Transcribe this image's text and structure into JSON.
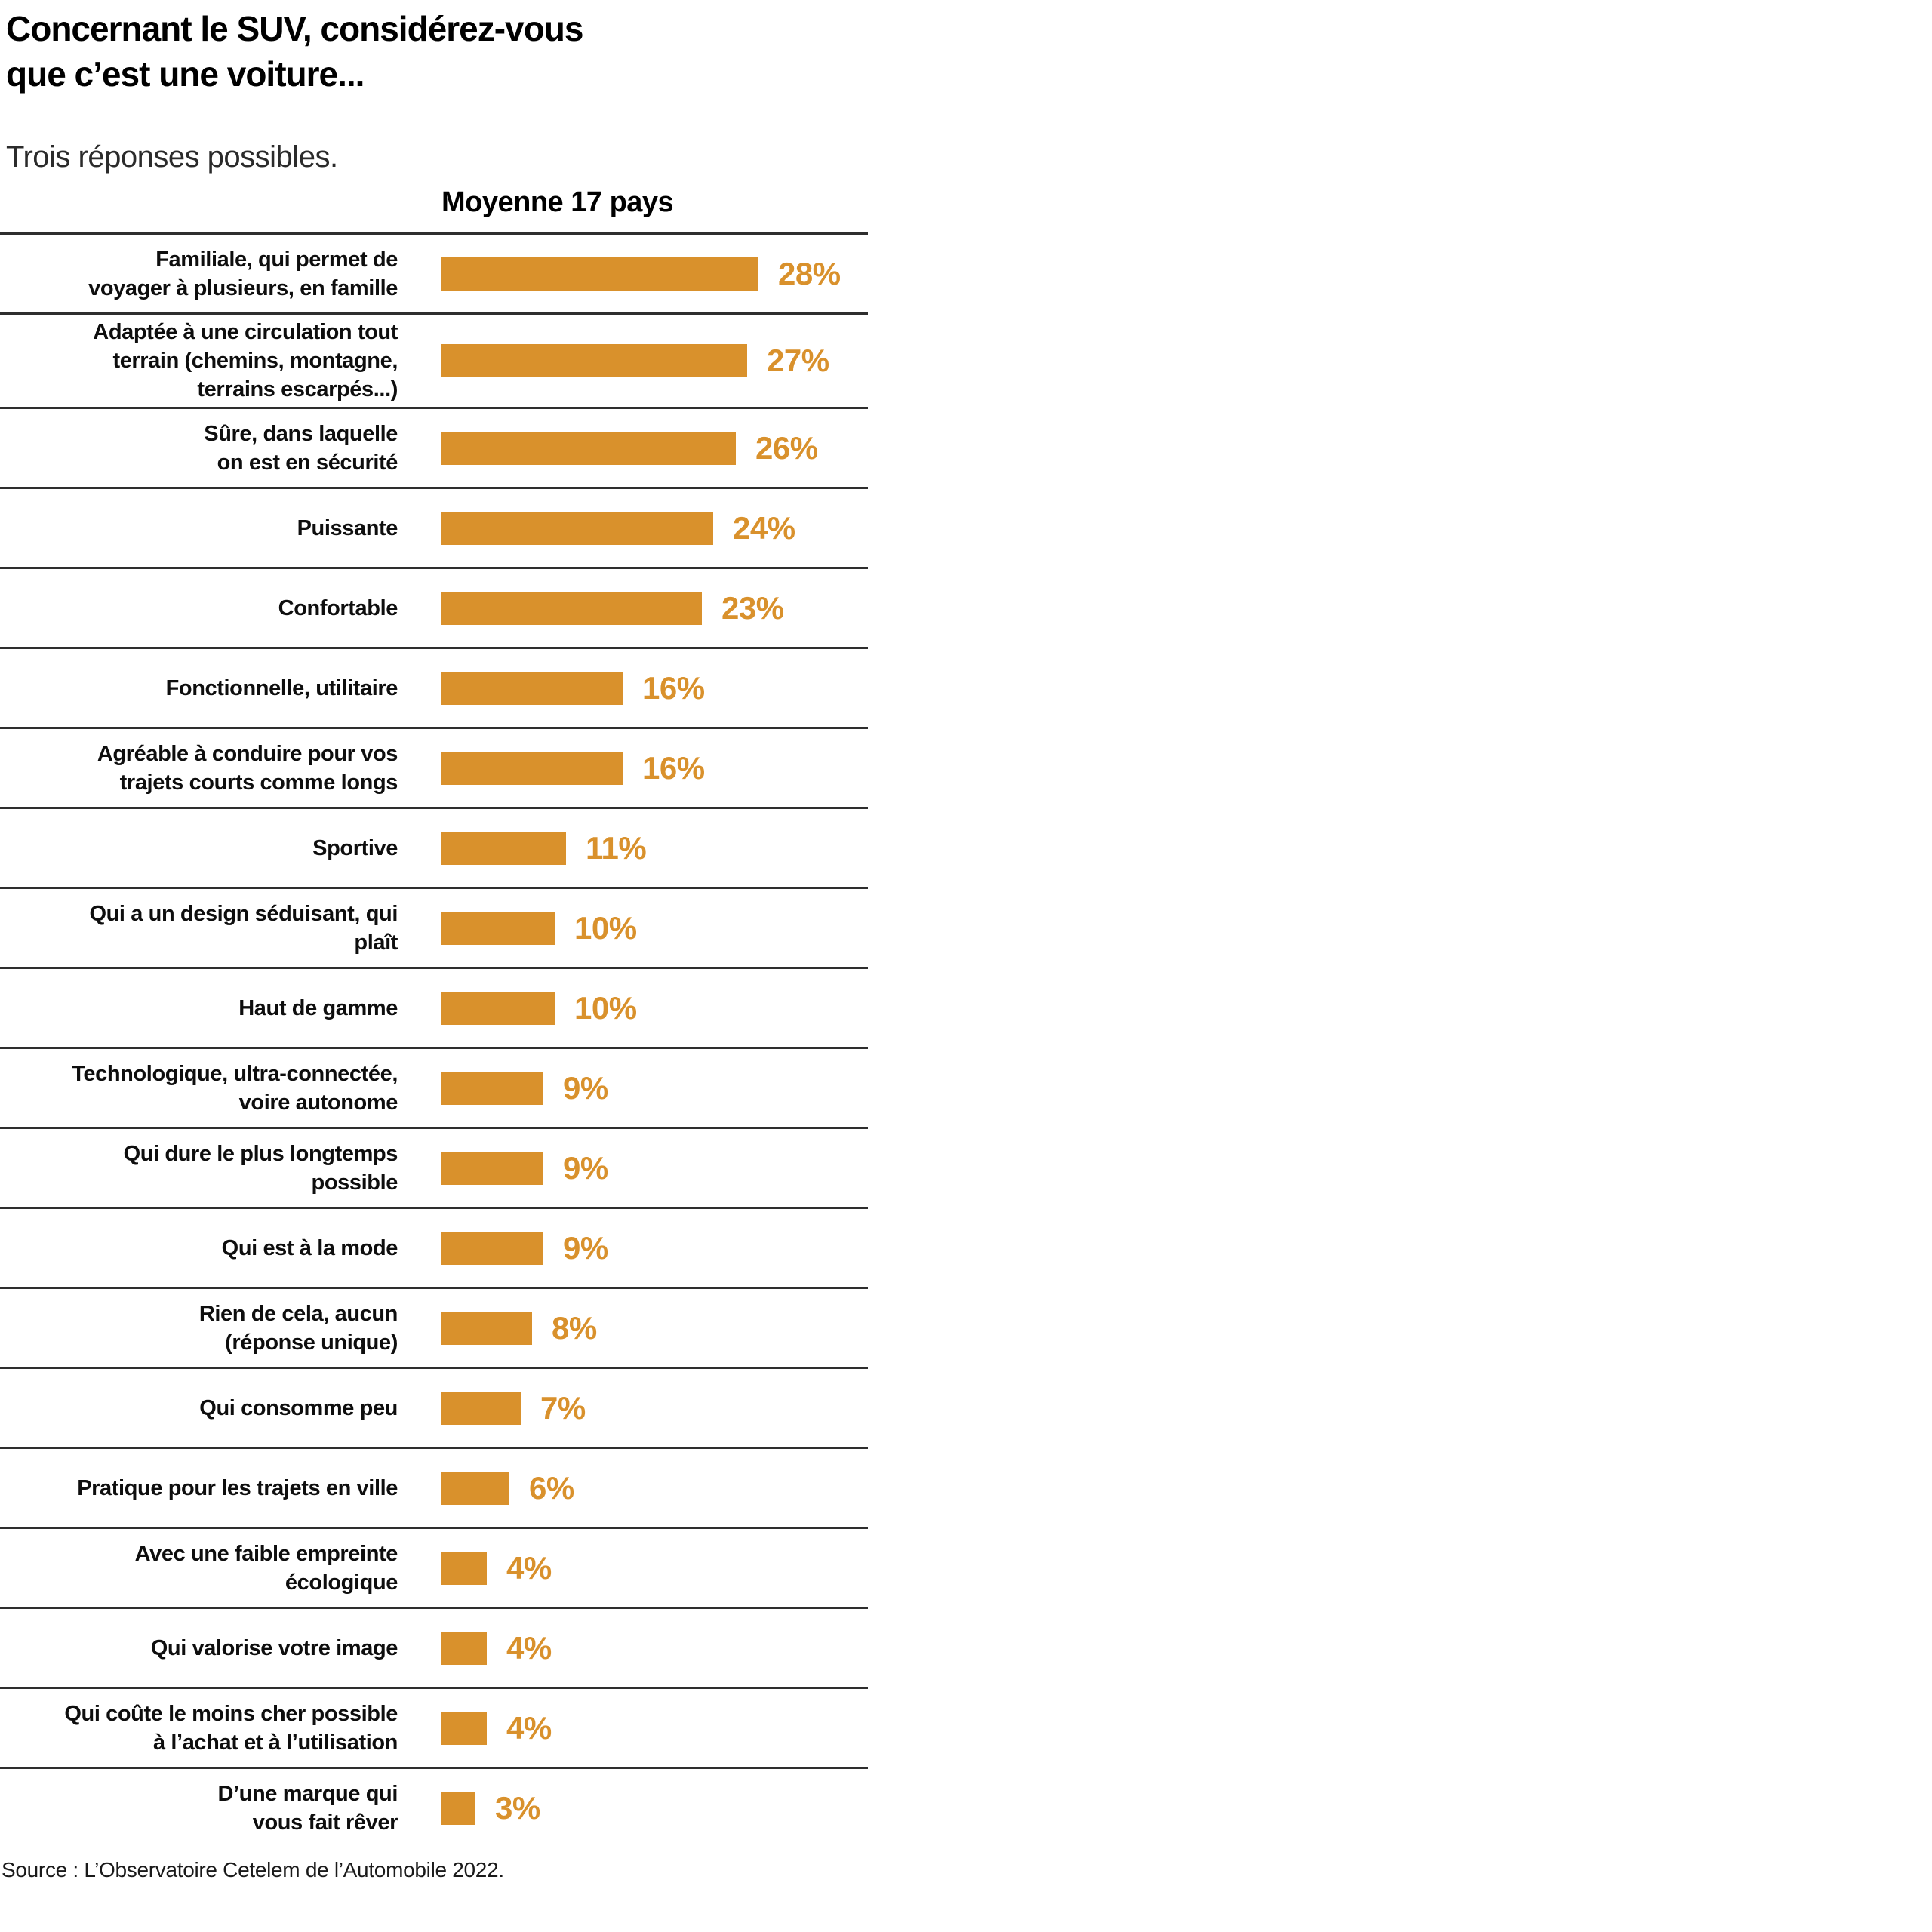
{
  "header": {
    "title": "Concernant le SUV, considérez-vous\nque c’est une voiture...",
    "subtitle": "Trois réponses possibles.",
    "column_header": "Moyenne 17 pays"
  },
  "footer": {
    "source": "Source : L’Observatoire Cetelem de l’Automobile 2022."
  },
  "colors": {
    "bar": "#d9912c",
    "separator": "#2e2e2e",
    "text": "#0e0e0e"
  },
  "chart_data": {
    "type": "bar",
    "orientation": "horizontal",
    "title": "Concernant le SUV, considérez-vous que c’est une voiture...",
    "subtitle": "Trois réponses possibles.",
    "series_label": "Moyenne 17 pays",
    "unit": "%",
    "xlim": [
      0,
      30
    ],
    "grid": false,
    "categories": [
      "Familiale, qui permet de\nvoyager à plusieurs, en famille",
      "Adaptée à une circulation tout\nterrain (chemins, montagne,\nterrains escarpés...)",
      "Sûre, dans laquelle\non est en sécurité",
      "Puissante",
      "Confortable",
      "Fonctionnelle, utilitaire",
      "Agréable à conduire pour vos\ntrajets courts comme longs",
      "Sportive",
      "Qui a un design séduisant, qui\nplaît",
      "Haut de gamme",
      "Technologique, ultra-connectée,\nvoire autonome",
      "Qui dure le plus longtemps\npossible",
      "Qui est à la mode",
      "Rien de cela, aucun\n(réponse unique)",
      "Qui consomme peu",
      "Pratique pour les trajets en ville",
      "Avec une faible empreinte\nécologique",
      "Qui valorise votre image",
      "Qui coûte le moins cher possible\nà l’achat et à l’utilisation",
      "D’une marque qui\nvous fait rêver"
    ],
    "values": [
      28,
      27,
      26,
      24,
      23,
      16,
      16,
      11,
      10,
      10,
      9,
      9,
      9,
      8,
      7,
      6,
      4,
      4,
      4,
      3
    ],
    "value_labels": [
      "28%",
      "27%",
      "26%",
      "24%",
      "23%",
      "16%",
      "16%",
      "11%",
      "10%",
      "10%",
      "9%",
      "9%",
      "9%",
      "8%",
      "7%",
      "6%",
      "4%",
      "4%",
      "4%",
      "3%"
    ]
  }
}
